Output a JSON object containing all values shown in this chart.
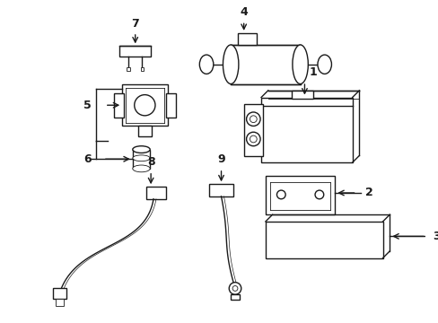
{
  "background": "#ffffff",
  "line_color": "#1a1a1a",
  "line_width": 1.0,
  "thin_lw": 0.6,
  "label_fontsize": 9,
  "figsize": [
    4.89,
    3.6
  ],
  "dpi": 100
}
